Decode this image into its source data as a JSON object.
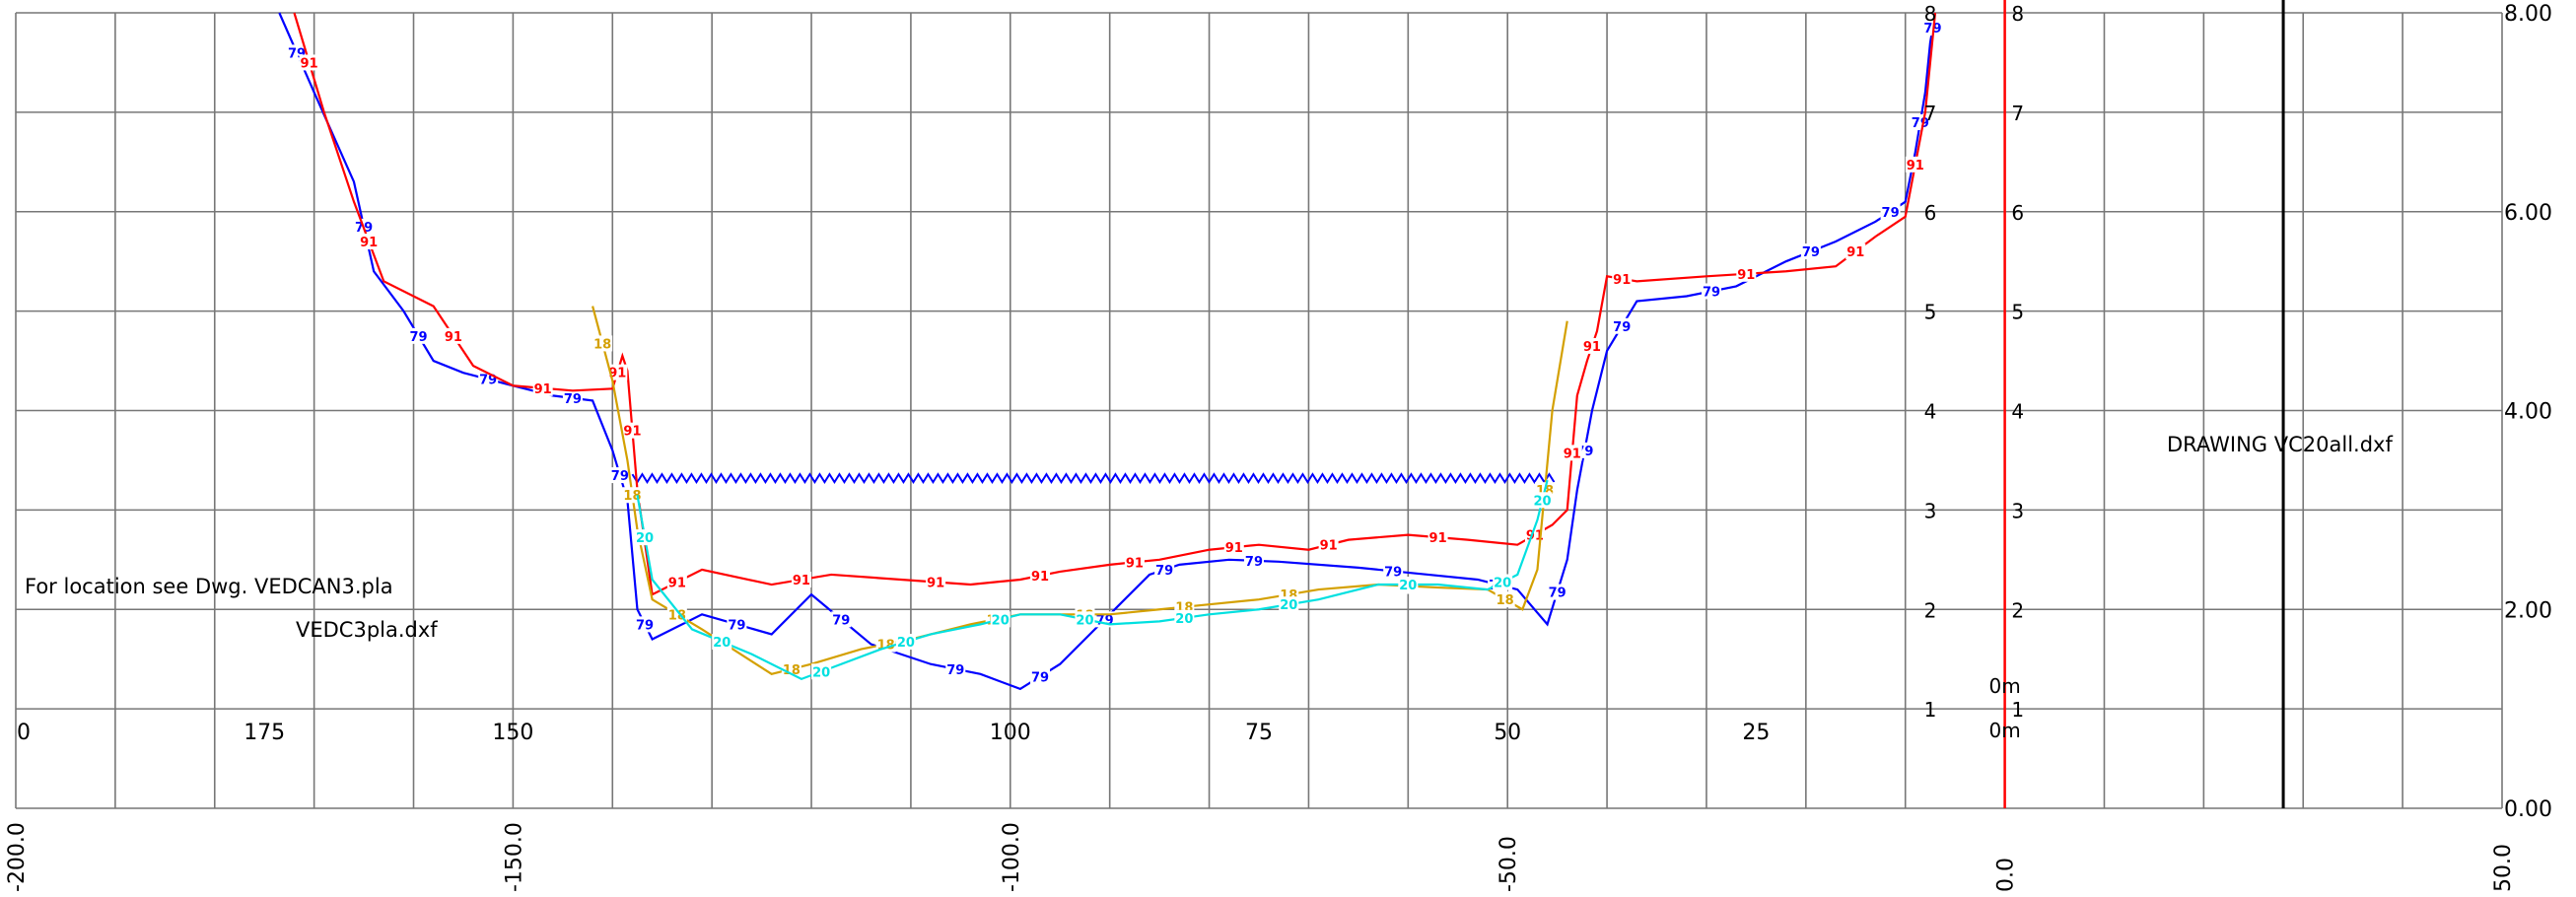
{
  "chart_data": {
    "type": "line",
    "title": "",
    "xlabel": "",
    "ylabel": "",
    "xlim": [
      -200,
      50
    ],
    "ylim": [
      0,
      8
    ],
    "grid": true,
    "x_ticks_bottom": [
      "-200.0",
      "-150.0",
      "-100.0",
      "-50.0",
      "0.0",
      "50.0"
    ],
    "y_ticks_right": [
      "0.00",
      "2.00",
      "4.00",
      "6.00",
      "8.00"
    ],
    "chainage_labels": [
      "0",
      "175",
      "150",
      "100",
      "75",
      "50",
      "25"
    ],
    "inner_scale_labels": [
      "1",
      "2",
      "3",
      "4",
      "5",
      "6",
      "7",
      "8"
    ],
    "zero_labels": [
      "0m",
      "0m"
    ],
    "annotations": {
      "location_note": "For location see Dwg. VEDCAN3.pla",
      "file_note": "VEDC3pla.dxf",
      "drawing_note": "DRAWING VC20all.dxf"
    },
    "water_level": {
      "x": [
        -138,
        -45
      ],
      "y": 3.32
    },
    "series": [
      {
        "name": "79",
        "color": "#0000ff",
        "x": [
          -173.5,
          -170,
          -166,
          -164,
          -161,
          -158,
          -155,
          -150,
          -146,
          -142,
          -140,
          -138.5,
          -137.5,
          -136,
          -131,
          -124,
          -120,
          -114,
          -108,
          -103,
          -99,
          -95,
          -92,
          -89,
          -86,
          -83,
          -78,
          -73,
          -65,
          -58,
          -53,
          -49,
          -46,
          -44,
          -43,
          -41.5,
          -40,
          -37,
          -32,
          -27,
          -22,
          -17,
          -13,
          -10,
          -9,
          -8,
          -7.5,
          -7
        ],
        "y": [
          8.0,
          7.2,
          6.3,
          5.4,
          5.0,
          4.5,
          4.38,
          4.25,
          4.15,
          4.1,
          3.6,
          3.1,
          2.0,
          1.7,
          1.95,
          1.75,
          2.15,
          1.65,
          1.45,
          1.35,
          1.2,
          1.45,
          1.75,
          2.05,
          2.35,
          2.45,
          2.5,
          2.48,
          2.42,
          2.35,
          2.3,
          2.2,
          1.85,
          2.5,
          3.2,
          4.0,
          4.6,
          5.1,
          5.15,
          5.25,
          5.5,
          5.7,
          5.9,
          6.1,
          6.6,
          7.2,
          7.7,
          8.0
        ]
      },
      {
        "name": "91",
        "color": "#ff0000",
        "x": [
          -172,
          -169,
          -166,
          -163,
          -158,
          -154,
          -150,
          -144,
          -140,
          -139,
          -138.5,
          -137.5,
          -136,
          -131,
          -124,
          -118,
          -111,
          -104,
          -99,
          -95,
          -90,
          -85,
          -80,
          -75,
          -70,
          -66,
          -60,
          -54,
          -49,
          -45.5,
          -44,
          -43,
          -42,
          -41,
          -40,
          -37,
          -30,
          -22,
          -17,
          -13,
          -10,
          -8,
          -7
        ],
        "y": [
          8.0,
          7.0,
          6.1,
          5.3,
          5.05,
          4.45,
          4.25,
          4.2,
          4.22,
          4.55,
          4.4,
          3.2,
          2.15,
          2.4,
          2.25,
          2.35,
          2.3,
          2.25,
          2.3,
          2.38,
          2.45,
          2.5,
          2.6,
          2.65,
          2.6,
          2.7,
          2.75,
          2.7,
          2.65,
          2.85,
          3.0,
          4.15,
          4.5,
          4.8,
          5.35,
          5.3,
          5.35,
          5.4,
          5.45,
          5.75,
          5.95,
          7.0,
          8.0
        ]
      },
      {
        "name": "18",
        "color": "#d4a000",
        "x": [
          -142,
          -140,
          -138.5,
          -137.5,
          -136,
          -131,
          -124,
          -120,
          -115,
          -110,
          -104,
          -99,
          -95,
          -90,
          -85,
          -80,
          -75,
          -69,
          -63,
          -57,
          -52,
          -48.5,
          -47,
          -45.5,
          -44
        ],
        "y": [
          5.05,
          4.3,
          3.5,
          2.8,
          2.1,
          1.8,
          1.35,
          1.45,
          1.6,
          1.7,
          1.85,
          1.95,
          1.95,
          1.95,
          2.0,
          2.05,
          2.1,
          2.2,
          2.25,
          2.22,
          2.2,
          2.0,
          2.4,
          4.0,
          4.9
        ]
      },
      {
        "name": "20",
        "color": "#00e0e0",
        "x": [
          -137.5,
          -136,
          -132,
          -126,
          -121,
          -117,
          -113,
          -108,
          -103,
          -99,
          -95,
          -90,
          -85,
          -80,
          -75,
          -69,
          -63,
          -57,
          -52,
          -49,
          -47,
          -46
        ],
        "y": [
          3.15,
          2.3,
          1.8,
          1.55,
          1.3,
          1.45,
          1.6,
          1.75,
          1.85,
          1.95,
          1.95,
          1.85,
          1.88,
          1.95,
          2.0,
          2.1,
          2.25,
          2.25,
          2.2,
          2.35,
          2.9,
          3.3
        ]
      }
    ]
  }
}
